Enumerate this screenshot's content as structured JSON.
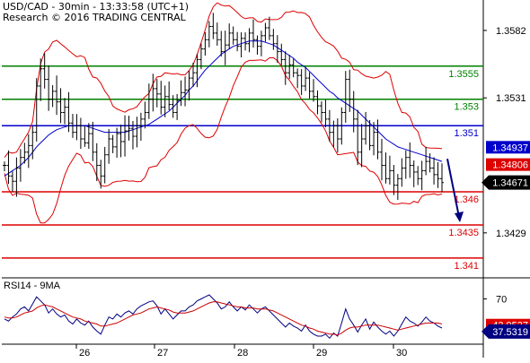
{
  "header": {
    "symbol_line": "USD/CAD - 30min - 13:33:58 (UTC+1)",
    "credit_line": "Research © 2016 TRADING CENTRAL"
  },
  "chart_data": [
    {
      "type": "candlestick",
      "title": "USD/CAD - 30min - 13:33:58 (UTC+1)",
      "ylim": [
        1.3395,
        1.3605
      ],
      "y_ticks": [
        "1.3582",
        "1.3531",
        "1.3429"
      ],
      "x_tick_labels": [
        "26",
        "27",
        "28",
        "29",
        "30"
      ],
      "price": [
        1.348,
        1.3472,
        1.3468,
        1.3478,
        1.3486,
        1.349,
        1.3495,
        1.3505,
        1.354,
        1.3553,
        1.3545,
        1.353,
        1.3536,
        1.3528,
        1.352,
        1.3524,
        1.3512,
        1.3505,
        1.351,
        1.35,
        1.3497,
        1.3504,
        1.349,
        1.348,
        1.3472,
        1.3488,
        1.35,
        1.3494,
        1.3504,
        1.3498,
        1.3506,
        1.3508,
        1.3502,
        1.351,
        1.3515,
        1.352,
        1.353,
        1.3538,
        1.3534,
        1.3524,
        1.3532,
        1.3526,
        1.352,
        1.3529,
        1.3535,
        1.3537,
        1.3546,
        1.355,
        1.356,
        1.3568,
        1.3575,
        1.3585,
        1.358,
        1.3575,
        1.3566,
        1.3571,
        1.358,
        1.3575,
        1.357,
        1.3576,
        1.3572,
        1.358,
        1.3575,
        1.357,
        1.3578,
        1.3584,
        1.3578,
        1.3572,
        1.3566,
        1.356,
        1.355,
        1.3556,
        1.355,
        1.3548,
        1.354,
        1.3546,
        1.3536,
        1.3532,
        1.3525,
        1.352,
        1.3515,
        1.3505,
        1.351,
        1.35,
        1.352,
        1.3545,
        1.353,
        1.3515,
        1.349,
        1.35,
        1.351,
        1.3495,
        1.3505,
        1.349,
        1.348,
        1.347,
        1.3476,
        1.3465,
        1.347,
        1.3478,
        1.3486,
        1.348,
        1.3475,
        1.347,
        1.3476,
        1.3483,
        1.3478,
        1.3473,
        1.347,
        1.3467
      ],
      "moving_average": [
        1.3472,
        1.3474,
        1.3476,
        1.3478,
        1.348,
        1.3483,
        1.3486,
        1.349,
        1.3494,
        1.3497,
        1.35,
        1.3503,
        1.3505,
        1.3507,
        1.3508,
        1.3509,
        1.351,
        1.351,
        1.351,
        1.351,
        1.351,
        1.3509,
        1.3508,
        1.3507,
        1.3506,
        1.3505,
        1.3505,
        1.3505,
        1.3505,
        1.3505,
        1.3505,
        1.3506,
        1.3507,
        1.3508,
        1.3509,
        1.351,
        1.3511,
        1.3513,
        1.3515,
        1.3517,
        1.3519,
        1.3521,
        1.3524,
        1.3527,
        1.353,
        1.3533,
        1.3537,
        1.354,
        1.3544,
        1.3548,
        1.3552,
        1.3555,
        1.3558,
        1.3561,
        1.3564,
        1.3566,
        1.3568,
        1.357,
        1.3571,
        1.3572,
        1.3573,
        1.3574,
        1.3574,
        1.3574,
        1.3574,
        1.3573,
        1.3572,
        1.3571,
        1.3569,
        1.3567,
        1.3565,
        1.3563,
        1.3561,
        1.3558,
        1.3556,
        1.3554,
        1.3551,
        1.3548,
        1.3545,
        1.3542,
        1.3539,
        1.3536,
        1.3534,
        1.3531,
        1.3529,
        1.3527,
        1.3525,
        1.3523,
        1.3521,
        1.3518,
        1.3515,
        1.3512,
        1.3509,
        1.3506,
        1.3503,
        1.35,
        1.3498,
        1.3496,
        1.3494,
        1.3493,
        1.3492,
        1.3491,
        1.349,
        1.3489,
        1.3488,
        1.3487,
        1.3486,
        1.3485,
        1.3484,
        1.3483
      ],
      "support_resistance": [
        {
          "value": 1.3555,
          "label": "1.3555",
          "color": "#008000"
        },
        {
          "value": 1.353,
          "label": "1.353",
          "color": "#008000"
        },
        {
          "value": 1.351,
          "label": "1.351",
          "color": "#0000cc"
        },
        {
          "value": 1.346,
          "label": "1.346",
          "color": "#dd0000"
        },
        {
          "value": 1.3435,
          "label": "1.3435",
          "color": "#dd0000"
        },
        {
          "value": 1.341,
          "label": "1.341",
          "color": "#dd0000"
        }
      ],
      "price_badges": [
        {
          "value": 1.34937,
          "label": "1.34937",
          "bg": "#0000cc",
          "fg": "#ffffff",
          "shape": "rect"
        },
        {
          "value": 1.34806,
          "label": "1.34806",
          "bg": "#dd0000",
          "fg": "#ffffff",
          "shape": "rect"
        },
        {
          "value": 1.34671,
          "label": "1.34671",
          "bg": "#000000",
          "fg": "#ffffff",
          "shape": "tag"
        }
      ],
      "forecast_arrow": {
        "from": 1.3485,
        "to": 1.3437,
        "color": "#000080"
      }
    },
    {
      "type": "line",
      "title": "RSI14 - 9MA",
      "ylim": [
        25,
        90
      ],
      "y_ticks": [
        "70"
      ],
      "series": [
        {
          "name": "RSI14",
          "color": "#000080",
          "values": [
            50,
            48,
            52,
            55,
            60,
            62,
            58,
            65,
            72,
            68,
            64,
            56,
            60,
            55,
            52,
            54,
            48,
            45,
            50,
            46,
            44,
            48,
            42,
            38,
            35,
            44,
            52,
            50,
            55,
            52,
            56,
            58,
            55,
            60,
            63,
            65,
            67,
            68,
            63,
            55,
            60,
            55,
            50,
            54,
            58,
            58,
            62,
            64,
            68,
            70,
            72,
            74,
            70,
            66,
            60,
            62,
            67,
            62,
            58,
            62,
            59,
            64,
            60,
            56,
            60,
            62,
            58,
            54,
            50,
            46,
            42,
            46,
            43,
            41,
            38,
            44,
            38,
            35,
            33,
            33,
            35,
            31,
            36,
            33,
            46,
            60,
            50,
            44,
            37,
            44,
            50,
            40,
            47,
            42,
            38,
            35,
            38,
            33,
            38,
            45,
            52,
            48,
            46,
            43,
            47,
            52,
            48,
            46,
            43,
            41
          ]
        },
        {
          "name": "9MA",
          "color": "#cc0000",
          "values": [
            52,
            51,
            51,
            52,
            54,
            56,
            57,
            58,
            61,
            63,
            64,
            63,
            62,
            60,
            58,
            56,
            54,
            52,
            51,
            50,
            48,
            47,
            46,
            45,
            43,
            43,
            44,
            45,
            46,
            48,
            50,
            52,
            54,
            55,
            56,
            58,
            60,
            61,
            62,
            61,
            60,
            59,
            57,
            56,
            56,
            56,
            57,
            58,
            60,
            62,
            64,
            66,
            67,
            67,
            66,
            65,
            64,
            63,
            62,
            62,
            61,
            61,
            61,
            60,
            60,
            60,
            59,
            58,
            56,
            54,
            52,
            50,
            48,
            46,
            44,
            43,
            41,
            40,
            38,
            37,
            36,
            35,
            35,
            34,
            36,
            39,
            41,
            42,
            42,
            43,
            44,
            44,
            44,
            44,
            43,
            42,
            41,
            40,
            39,
            40,
            41,
            42,
            43,
            44,
            45,
            46,
            46,
            46,
            46,
            45
          ]
        }
      ],
      "badges": [
        {
          "value": 43.9537,
          "label": "43.9537",
          "bg": "#dd0000",
          "fg": "#ffffff",
          "shape": "rect"
        },
        {
          "value": 37.5319,
          "label": "37.5319",
          "bg": "#000080",
          "fg": "#ffffff",
          "shape": "tag"
        }
      ]
    }
  ]
}
